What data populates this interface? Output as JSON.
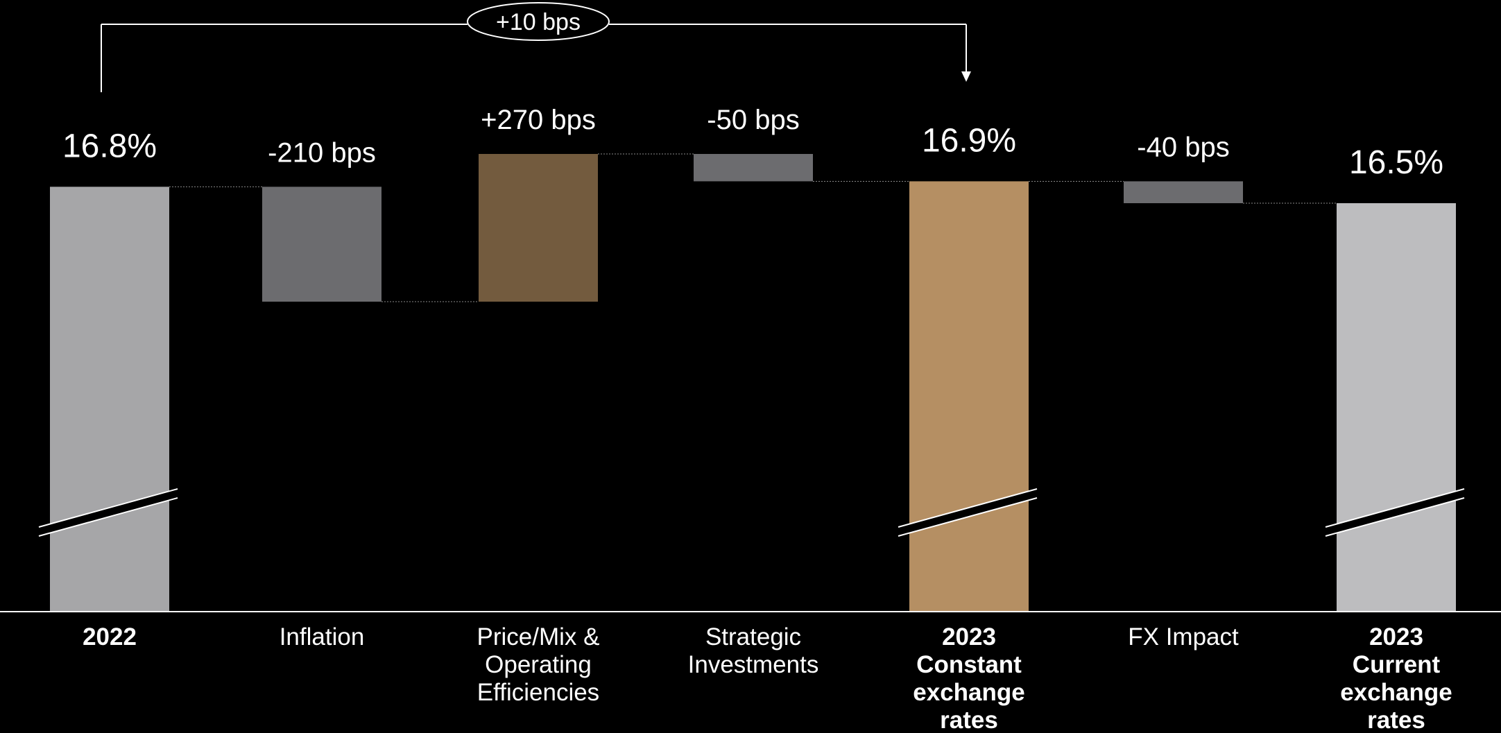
{
  "chart_data": {
    "type": "bar",
    "subtype": "waterfall",
    "title": "",
    "xlabel": "",
    "ylabel": "",
    "unit": "%",
    "y_axis_visible": false,
    "grid": false,
    "axis_break": true,
    "categories": [
      {
        "lines": [
          "2022"
        ],
        "bold": true
      },
      {
        "lines": [
          "Inflation"
        ],
        "bold": false
      },
      {
        "lines": [
          "Price/Mix &",
          "Operating",
          "Efficiencies"
        ],
        "bold": false
      },
      {
        "lines": [
          "Strategic",
          "Investments"
        ],
        "bold": false
      },
      {
        "lines": [
          "2023",
          "Constant",
          "exchange",
          "rates"
        ],
        "bold": true
      },
      {
        "lines": [
          "FX Impact"
        ],
        "bold": false
      },
      {
        "lines": [
          "2023",
          "Current",
          "exchange",
          "rates"
        ],
        "bold": true
      }
    ],
    "bars": [
      {
        "kind": "total",
        "start": 0,
        "end": 16.8,
        "label": "16.8%",
        "color": "#a6a6a8"
      },
      {
        "kind": "delta",
        "start": 16.8,
        "end": 14.7,
        "label": "-210 bps",
        "color": "#6c6c6f"
      },
      {
        "kind": "delta",
        "start": 14.7,
        "end": 17.4,
        "label": "+270 bps",
        "color": "#735b3e"
      },
      {
        "kind": "delta",
        "start": 17.4,
        "end": 16.9,
        "label": "-50 bps",
        "color": "#6c6c6f"
      },
      {
        "kind": "total",
        "start": 0,
        "end": 16.9,
        "label": "16.9%",
        "color": "#b58f63"
      },
      {
        "kind": "delta",
        "start": 16.9,
        "end": 16.5,
        "label": "-40 bps",
        "color": "#6c6c6f"
      },
      {
        "kind": "total",
        "start": 0,
        "end": 16.5,
        "label": "16.5%",
        "color": "#bdbdbf"
      }
    ],
    "bracket": {
      "from_index": 0,
      "to_index": 4,
      "label": "+10 bps"
    }
  }
}
